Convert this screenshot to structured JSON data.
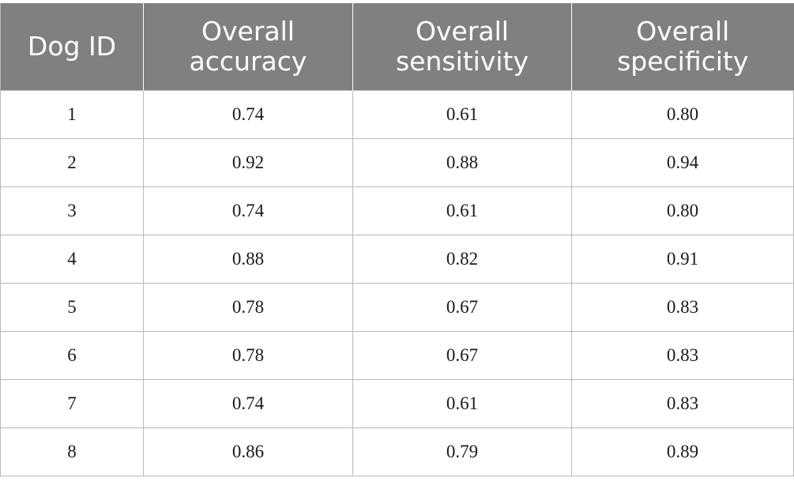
{
  "table": {
    "headers": [
      "Dog ID",
      "Overall accuracy",
      "Overall sensitivity",
      "Overall specificity"
    ],
    "rows": [
      [
        "1",
        "0.74",
        "0.61",
        "0.80"
      ],
      [
        "2",
        "0.92",
        "0.88",
        "0.94"
      ],
      [
        "3",
        "0.74",
        "0.61",
        "0.80"
      ],
      [
        "4",
        "0.88",
        "0.82",
        "0.91"
      ],
      [
        "5",
        "0.78",
        "0.67",
        "0.83"
      ],
      [
        "6",
        "0.78",
        "0.67",
        "0.83"
      ],
      [
        "7",
        "0.74",
        "0.61",
        "0.83"
      ],
      [
        "8",
        "0.86",
        "0.79",
        "0.89"
      ]
    ],
    "colors": {
      "header_background": "#808080",
      "header_text": "#ffffff",
      "grid_line": "#b8b8b8",
      "cell_text": "#1a1a1a"
    }
  }
}
